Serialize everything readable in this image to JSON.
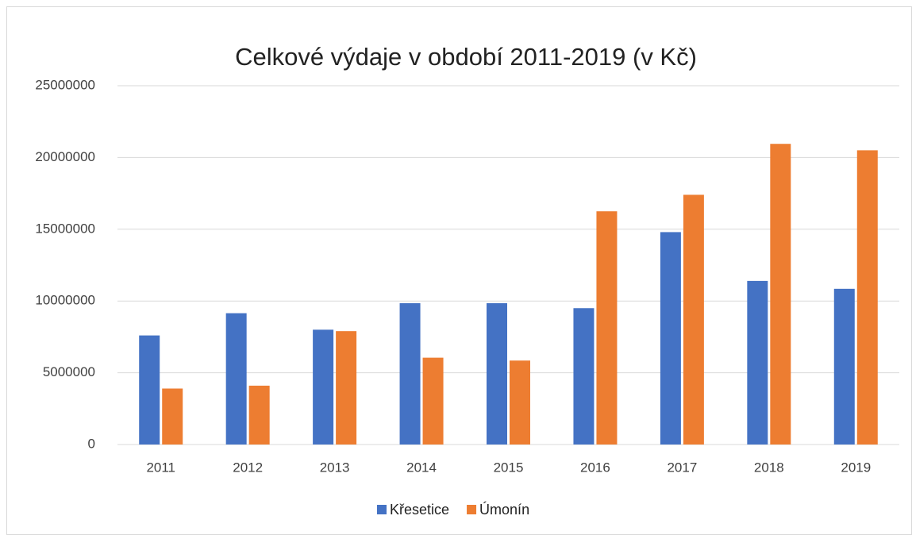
{
  "chart_data": {
    "type": "bar",
    "title": "Celkové výdaje v období 2011-2019 (v Kč)",
    "categories": [
      "2011",
      "2012",
      "2013",
      "2014",
      "2015",
      "2016",
      "2017",
      "2018",
      "2019"
    ],
    "series": [
      {
        "name": "Křesetice",
        "color": "#4472c4",
        "values": [
          7600000,
          9150000,
          8000000,
          9850000,
          9850000,
          9500000,
          14800000,
          11400000,
          10850000
        ]
      },
      {
        "name": "Úmonín",
        "color": "#ed7d31",
        "values": [
          3900000,
          4100000,
          7900000,
          6050000,
          5850000,
          16250000,
          17400000,
          20950000,
          20500000
        ]
      }
    ],
    "ylim": [
      0,
      25000000
    ],
    "yticks": [
      0,
      5000000,
      10000000,
      15000000,
      20000000,
      25000000
    ],
    "grid": true,
    "legend": "bottom"
  }
}
